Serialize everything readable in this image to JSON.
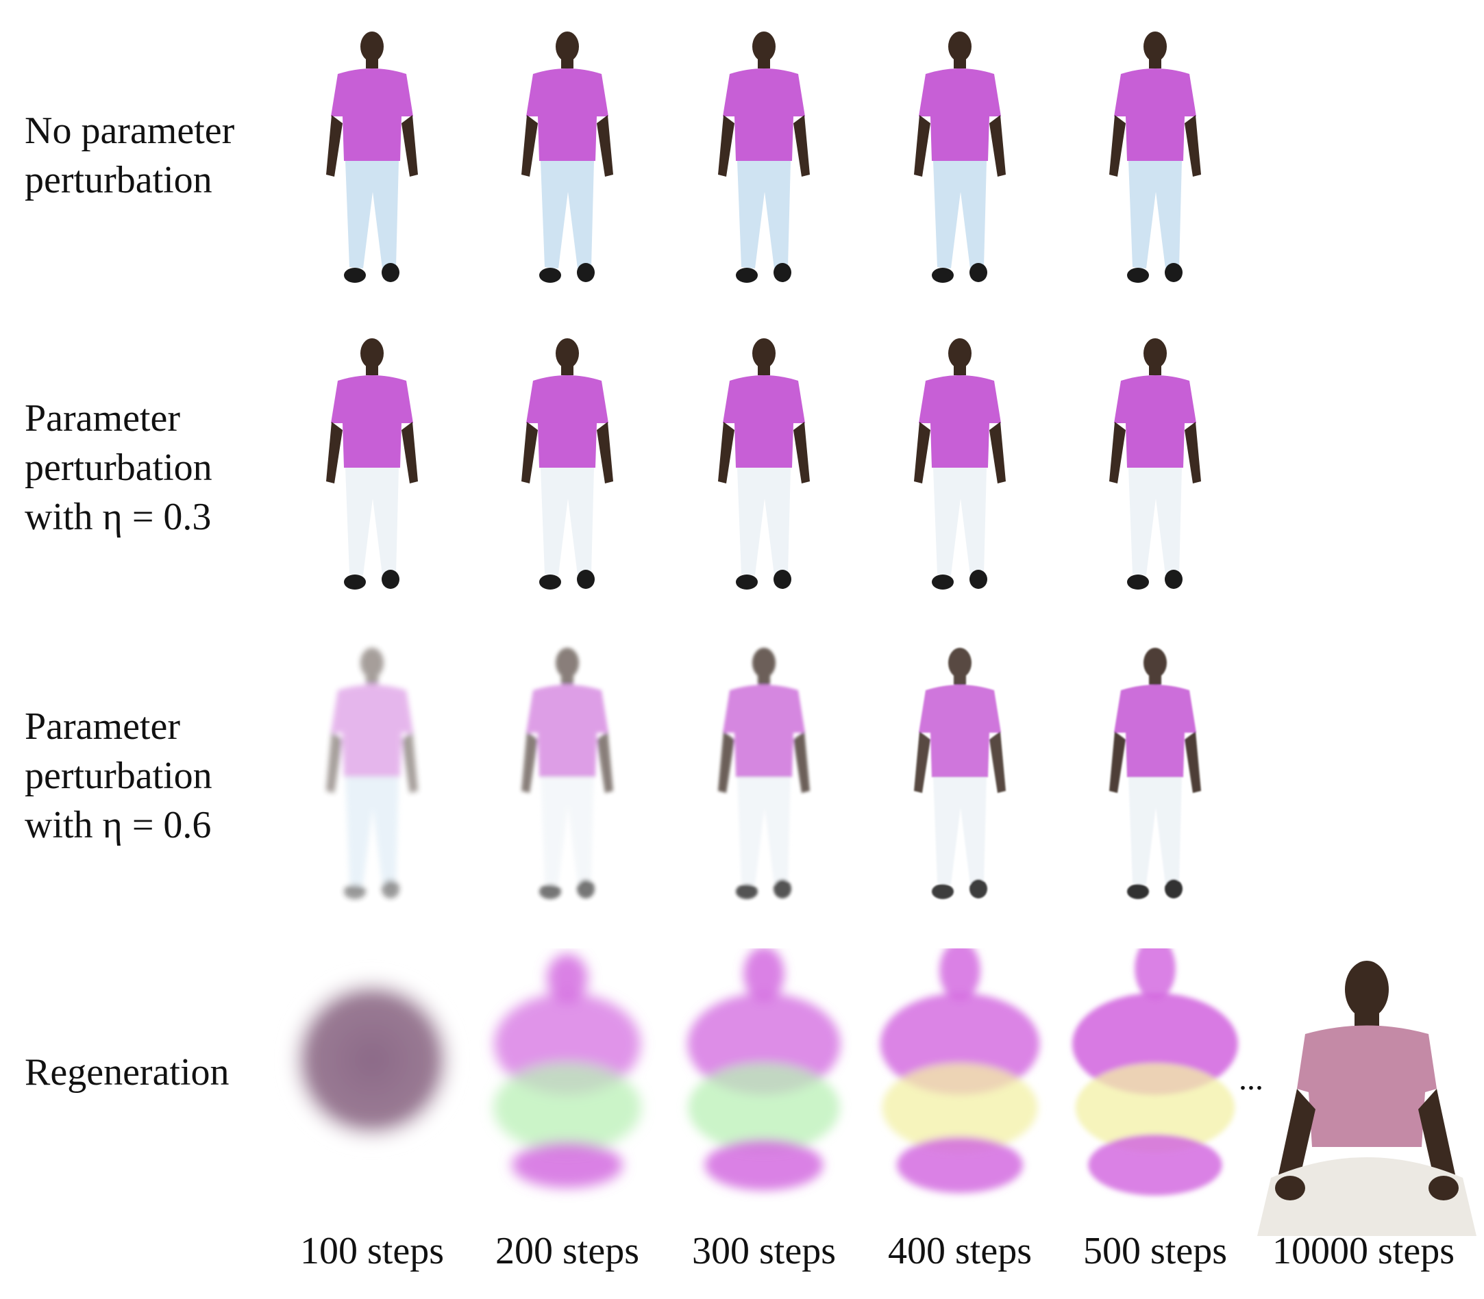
{
  "rows": [
    {
      "label_lines": [
        "No parameter",
        "perturbation"
      ]
    },
    {
      "label_lines": [
        "Parameter",
        "perturbation",
        "with η = 0.3"
      ]
    },
    {
      "label_lines": [
        "Parameter",
        "perturbation",
        "with η = 0.6"
      ]
    },
    {
      "label_lines": [
        "Regeneration"
      ]
    }
  ],
  "columns": [
    "100 steps",
    "200 steps",
    "300 steps",
    "400 steps",
    "500 steps",
    "10000 steps"
  ],
  "ellipsis": "...",
  "colors": {
    "shirt": "#c75fd6",
    "skin": "#3b2a20",
    "jeans": "#cfe3f2",
    "shoe": "#1a1a1a",
    "blob_pink": "#d46be0",
    "blob_green": "#b9f0b5",
    "blob_yellow": "#f3f0a6"
  }
}
